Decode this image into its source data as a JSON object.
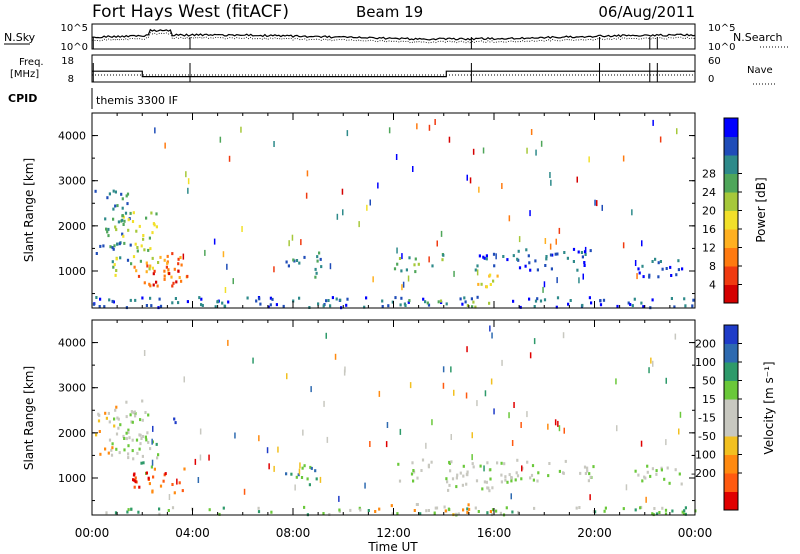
{
  "header": {
    "station": "Fort Hays West (fitACF)",
    "beam": "Beam 19",
    "date": "06/Aug/2011"
  },
  "noise_panel": {
    "left_label": "N.Sky",
    "right_label": "N.Search",
    "left_ticks": [
      "10^5",
      "10^0"
    ],
    "right_ticks": [
      "10^5",
      "10^0"
    ]
  },
  "freq_panel": {
    "left_label_line1": "Freq.",
    "left_label_line2": "[MHz]",
    "left_ticks": [
      "18",
      "8"
    ],
    "right_ticks": [
      "60",
      "0"
    ],
    "right_label": "Nave"
  },
  "cpid_panel": {
    "label": "CPID",
    "program": "themis 3300 IF"
  },
  "x_axis": {
    "title": "Time UT",
    "ticks": [
      "00:00",
      "04:00",
      "08:00",
      "12:00",
      "16:00",
      "20:00",
      "00:00"
    ]
  },
  "chart_data": [
    {
      "type": "heatmap",
      "name": "power",
      "ylabel": "Slant Range [km]",
      "xlabel": "",
      "ylim": [
        180,
        4500
      ],
      "xlim_hours": [
        0,
        24
      ],
      "y_ticks": [
        "1000",
        "2000",
        "3000",
        "4000"
      ],
      "colorbar": {
        "label": "Power [dB]",
        "ticks": [
          "4",
          "8",
          "12",
          "16",
          "20",
          "24",
          "28"
        ],
        "colors": [
          "#0000ff",
          "#1f4cb8",
          "#2e8a8a",
          "#4fa65a",
          "#a6c83a",
          "#f2e02a",
          "#ffb020",
          "#ff7a10",
          "#f03a10",
          "#d40000"
        ]
      },
      "regions": [
        {
          "t0": 0.1,
          "t1": 1.5,
          "r0": 1200,
          "r1": 2900,
          "level": 2
        },
        {
          "t0": 0.8,
          "t1": 2.6,
          "r0": 900,
          "r1": 2300,
          "level": 4
        },
        {
          "t0": 1.6,
          "t1": 3.8,
          "r0": 650,
          "r1": 1400,
          "level": 7
        },
        {
          "t0": 2.4,
          "t1": 3.6,
          "r0": 650,
          "r1": 1000,
          "level": 9
        },
        {
          "t0": 7.6,
          "t1": 9.1,
          "r0": 850,
          "r1": 1400,
          "level": 2
        },
        {
          "t0": 12.0,
          "t1": 14.0,
          "r0": 950,
          "r1": 1400,
          "level": 3
        },
        {
          "t0": 13.8,
          "t1": 14.4,
          "r0": 420,
          "r1": 650,
          "level": 7
        },
        {
          "t0": 15.0,
          "t1": 16.2,
          "r0": 650,
          "r1": 1000,
          "level": 5
        },
        {
          "t0": 15.2,
          "t1": 20.0,
          "r0": 1000,
          "r1": 1500,
          "level": 1
        },
        {
          "t0": 21.5,
          "t1": 23.5,
          "r0": 850,
          "r1": 1300,
          "level": 1
        },
        {
          "t0": 0.0,
          "t1": 24.0,
          "r0": 180,
          "r1": 420,
          "level": 1
        },
        {
          "t0": 12.0,
          "t1": 16.0,
          "r0": 180,
          "r1": 350,
          "level": 3
        }
      ]
    },
    {
      "type": "heatmap",
      "name": "velocity",
      "ylabel": "Slant Range [km]",
      "xlabel": "Time UT",
      "ylim": [
        180,
        4500
      ],
      "xlim_hours": [
        0,
        24
      ],
      "y_ticks": [
        "1000",
        "2000",
        "3000",
        "4000"
      ],
      "colorbar": {
        "label": "Velocity [m s⁻¹]",
        "ticks": [
          "200",
          "100",
          "50",
          "15",
          "-15",
          "-50",
          "-100",
          "-200"
        ],
        "colors": [
          "#1f3cc8",
          "#2e6ab0",
          "#2e9a6a",
          "#6ac83a",
          "#c8c8c0",
          "#c8c8c0",
          "#f2c020",
          "#ff8a10",
          "#ff5a10",
          "#e00000"
        ]
      },
      "regions": [
        {
          "t0": 0.1,
          "t1": 1.0,
          "r0": 1500,
          "r1": 2600,
          "level": 6
        },
        {
          "t0": 0.6,
          "t1": 2.2,
          "r0": 1500,
          "r1": 2800,
          "level": 4
        },
        {
          "t0": 1.2,
          "t1": 2.6,
          "r0": 1100,
          "r1": 2000,
          "level": 3
        },
        {
          "t0": 1.5,
          "t1": 3.8,
          "r0": 650,
          "r1": 1200,
          "level": 8
        },
        {
          "t0": 3.0,
          "t1": 3.4,
          "r0": 2100,
          "r1": 2400,
          "level": 0
        },
        {
          "t0": 7.6,
          "t1": 9.1,
          "r0": 850,
          "r1": 1300,
          "level": 2
        },
        {
          "t0": 12.0,
          "t1": 20.0,
          "r0": 900,
          "r1": 1400,
          "level": 4
        },
        {
          "t0": 14.0,
          "t1": 16.0,
          "r0": 700,
          "r1": 1100,
          "level": 4
        },
        {
          "t0": 21.5,
          "t1": 23.5,
          "r0": 850,
          "r1": 1300,
          "level": 4
        },
        {
          "t0": 0.0,
          "t1": 24.0,
          "r0": 180,
          "r1": 350,
          "level": 3
        },
        {
          "t0": 11.0,
          "t1": 16.0,
          "r0": 180,
          "r1": 420,
          "level": 6
        }
      ]
    }
  ]
}
